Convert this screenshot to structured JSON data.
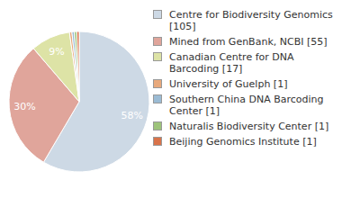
{
  "chart_data": {
    "type": "pie",
    "categories": [
      "Centre for Biodiversity Genomics [105]",
      "Mined from GenBank, NCBI [55]",
      "Canadian Centre for DNA Barcoding [17]",
      "University of Guelph [1]",
      "Southern China DNA Barcoding Center [1]",
      "Naturalis Biodiversity Center [1]",
      "Beijing Genomics Institute [1]"
    ],
    "values": [
      58,
      30,
      9,
      0.55,
      0.55,
      0.55,
      0.55
    ],
    "value_labels": [
      "58%",
      "30%",
      "9%",
      null,
      null,
      null,
      null
    ],
    "colors": [
      "#cdd9e5",
      "#e0a59b",
      "#dde3a6",
      "#e8a97c",
      "#9bbbd4",
      "#9dc37a",
      "#d9734a"
    ],
    "data_labels": true,
    "legend": "right"
  }
}
